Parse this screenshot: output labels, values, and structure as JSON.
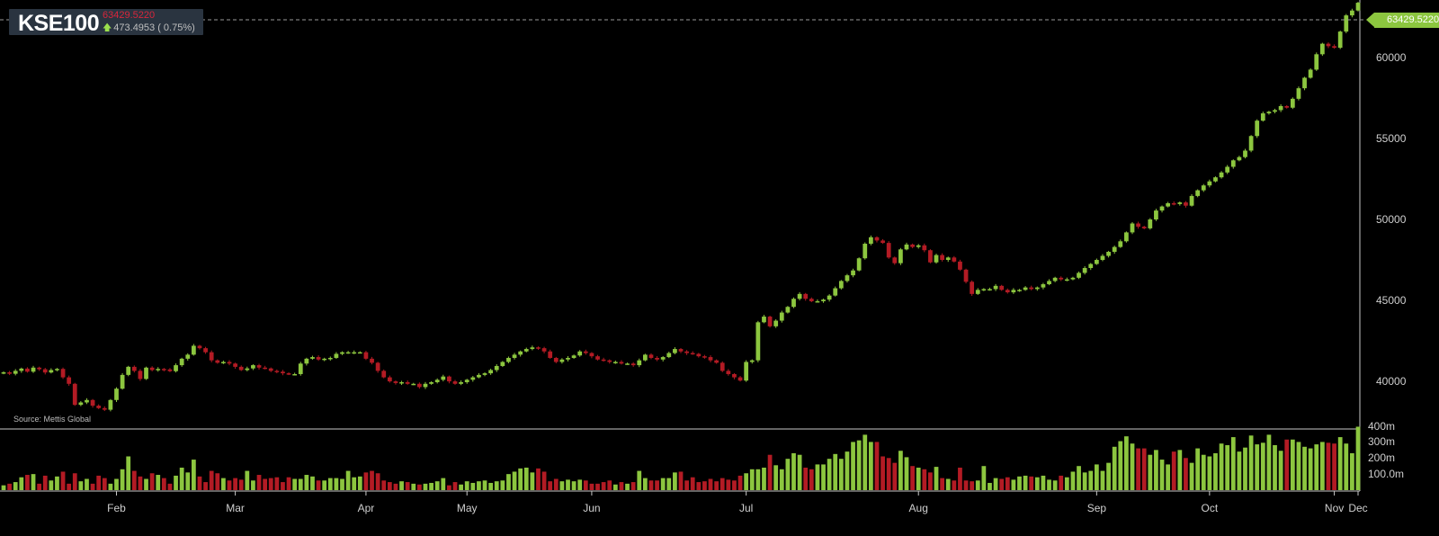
{
  "header": {
    "symbol": "KSE100",
    "last": "63429.5220",
    "change": "473.4953 ( 0.75%)",
    "change_direction": "up",
    "up_color": "#8cc63f",
    "down_color": "#b31b24",
    "last_color": "#d9263b"
  },
  "source_note": "Source: Mettis Global",
  "price_tag": "63429.5220",
  "chart_data": {
    "type": "candlestick",
    "price_axis": {
      "ticks": [
        "40000",
        "45000",
        "50000",
        "55000",
        "60000"
      ],
      "range": [
        37500,
        63600
      ]
    },
    "volume_axis": {
      "ticks": [
        "100.0m",
        "200m",
        "300m",
        "400m"
      ],
      "range": [
        0,
        420
      ]
    },
    "x_axis": {
      "labels": [
        "Feb",
        "Mar",
        "Apr",
        "May",
        "Jun",
        "Jul",
        "Aug",
        "Sep",
        "Oct",
        "Nov",
        "Dec"
      ]
    },
    "closes": [
      40610,
      40520,
      40700,
      40840,
      40650,
      40900,
      40800,
      40600,
      40750,
      40820,
      40300,
      39900,
      38600,
      38750,
      38900,
      38550,
      38400,
      38300,
      38900,
      39600,
      40450,
      40950,
      40700,
      40200,
      40900,
      40750,
      40820,
      40790,
      40680,
      41050,
      41450,
      41700,
      42250,
      42100,
      41850,
      41350,
      41200,
      41250,
      41150,
      40950,
      40750,
      40850,
      41050,
      40900,
      40850,
      40700,
      40650,
      40550,
      40500,
      40500,
      41150,
      41450,
      41550,
      41400,
      41450,
      41500,
      41750,
      41850,
      41850,
      41850,
      41850,
      41450,
      41200,
      40700,
      40300,
      40050,
      39950,
      40000,
      39900,
      39900,
      39700,
      39900,
      40000,
      40150,
      40350,
      40050,
      39900,
      40000,
      40150,
      40300,
      40450,
      40550,
      40750,
      41000,
      41250,
      41500,
      41700,
      41900,
      42050,
      42150,
      42100,
      41900,
      41500,
      41250,
      41400,
      41500,
      41650,
      41900,
      41800,
      41600,
      41400,
      41350,
      41250,
      41250,
      41150,
      41150,
      41050,
      41350,
      41700,
      41500,
      41400,
      41550,
      41800,
      42050,
      41900,
      41800,
      41750,
      41600,
      41550,
      41350,
      41200,
      40700,
      40500,
      40300,
      40100,
      41250,
      41350,
      43700,
      44050,
      43450,
      43800,
      44300,
      44650,
      45150,
      45450,
      45150,
      45000,
      45000,
      45100,
      45350,
      45800,
      46250,
      46600,
      46900,
      47650,
      48550,
      48950,
      48750,
      48600,
      47700,
      47350,
      48200,
      48500,
      48350,
      48450,
      48150,
      47400,
      47850,
      47550,
      47700,
      47450,
      46950,
      46200,
      45450,
      45700,
      45750,
      45750,
      45950,
      45700,
      45550,
      45700,
      45700,
      45850,
      45750,
      45850,
      46050,
      46250,
      46450,
      46350,
      46350,
      46450,
      46750,
      47050,
      47300,
      47550,
      47800,
      48050,
      48350,
      48700,
      49250,
      49800,
      49600,
      49500,
      50050,
      50600,
      50850,
      51050,
      51000,
      51100,
      50900,
      51500,
      51850,
      52150,
      52400,
      52650,
      52950,
      53300,
      53700,
      53900,
      54300,
      55200,
      56150,
      56600,
      56700,
      56800,
      57050,
      56950,
      57500,
      58150,
      58800,
      59300,
      60250,
      60900,
      60750,
      60650,
      61650,
      62650,
      62950,
      63429.522
    ],
    "volumes": [
      30,
      40,
      50,
      80,
      95,
      100,
      40,
      90,
      60,
      85,
      115,
      40,
      105,
      55,
      70,
      40,
      90,
      75,
      40,
      70,
      130,
      210,
      120,
      85,
      70,
      105,
      95,
      75,
      40,
      90,
      140,
      110,
      190,
      85,
      50,
      120,
      105,
      75,
      60,
      75,
      65,
      120,
      60,
      95,
      70,
      75,
      80,
      50,
      80,
      70,
      70,
      95,
      85,
      60,
      60,
      75,
      75,
      70,
      120,
      80,
      85,
      110,
      120,
      105,
      60,
      50,
      40,
      55,
      50,
      40,
      35,
      40,
      45,
      55,
      75,
      30,
      50,
      35,
      55,
      45,
      55,
      60,
      45,
      55,
      60,
      100,
      115,
      135,
      140,
      110,
      135,
      115,
      55,
      70,
      55,
      65,
      55,
      65,
      60,
      40,
      40,
      50,
      60,
      35,
      50,
      40,
      50,
      120,
      75,
      60,
      60,
      75,
      75,
      110,
      115,
      60,
      80,
      50,
      55,
      70,
      55,
      75,
      65,
      60,
      90,
      105,
      130,
      130,
      140,
      220,
      155,
      130,
      195,
      230,
      220,
      140,
      130,
      160,
      160,
      195,
      225,
      195,
      240,
      300,
      310,
      345,
      300,
      300,
      210,
      200,
      170,
      245,
      205,
      150,
      140,
      130,
      110,
      145,
      75,
      70,
      60,
      140,
      60,
      55,
      60,
      150,
      45,
      75,
      70,
      80,
      65,
      85,
      90,
      85,
      80,
      90,
      65,
      60,
      90,
      80,
      115,
      150,
      110,
      120,
      160,
      120,
      170,
      270,
      305,
      335,
      290,
      260,
      260,
      220,
      250,
      190,
      160,
      240,
      250,
      200,
      170,
      260,
      220,
      210,
      230,
      290,
      280,
      330,
      240,
      265,
      340,
      285,
      295,
      345,
      280,
      245,
      315,
      315,
      300,
      270,
      260,
      285,
      300,
      295,
      290,
      330,
      290,
      230,
      395
    ]
  }
}
